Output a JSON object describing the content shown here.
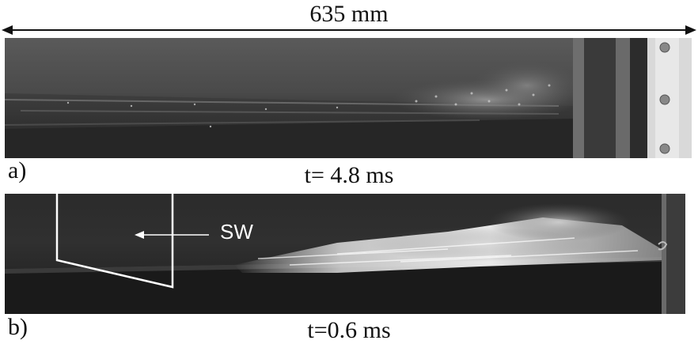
{
  "dimension": {
    "label": "635 mm"
  },
  "panels": [
    {
      "label": "a)",
      "time": "t= 4.8 ms"
    },
    {
      "label": "b)",
      "time": "t=0.6 ms",
      "wave_label": "SW"
    }
  ],
  "colors": {
    "text": "#111111",
    "annotation": "#ffffff"
  }
}
